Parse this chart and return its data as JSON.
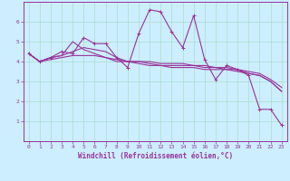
{
  "xlabel": "Windchill (Refroidissement éolien,°C)",
  "bg_color": "#cceeff",
  "grid_color": "#aaddcc",
  "line_color": "#993399",
  "xlim": [
    -0.5,
    23.5
  ],
  "ylim": [
    0,
    7
  ],
  "xticks": [
    0,
    1,
    2,
    3,
    4,
    5,
    6,
    7,
    8,
    9,
    10,
    11,
    12,
    13,
    14,
    15,
    16,
    17,
    18,
    19,
    20,
    21,
    22,
    23
  ],
  "yticks": [
    1,
    2,
    3,
    4,
    5,
    6
  ],
  "line1_x": [
    0,
    1,
    2,
    3,
    4,
    5,
    6,
    7,
    8,
    9,
    10,
    11,
    12,
    13,
    14,
    15,
    16,
    17,
    18,
    19,
    20,
    21,
    22,
    23
  ],
  "line1_y": [
    4.4,
    4.0,
    4.2,
    4.5,
    4.4,
    5.2,
    4.9,
    4.9,
    4.2,
    3.7,
    5.4,
    6.6,
    6.5,
    5.5,
    4.7,
    6.3,
    4.1,
    3.1,
    3.8,
    3.6,
    3.3,
    1.6,
    1.6,
    0.8
  ],
  "line2_x": [
    0,
    1,
    2,
    3,
    4,
    5,
    6,
    7,
    8,
    9,
    10,
    11,
    12,
    13,
    14,
    15,
    16,
    17,
    18,
    19,
    20,
    21,
    22,
    23
  ],
  "line2_y": [
    4.4,
    4.0,
    4.2,
    4.3,
    5.0,
    4.6,
    4.4,
    4.2,
    4.0,
    4.0,
    4.0,
    3.9,
    3.8,
    3.8,
    3.8,
    3.8,
    3.7,
    3.7,
    3.6,
    3.6,
    3.4,
    3.3,
    3.0,
    2.5
  ],
  "line3_x": [
    0,
    1,
    2,
    3,
    4,
    5,
    6,
    7,
    8,
    9,
    10,
    11,
    12,
    13,
    14,
    15,
    16,
    17,
    18,
    19,
    20,
    21,
    22,
    23
  ],
  "line3_y": [
    4.4,
    4.0,
    4.2,
    4.3,
    4.5,
    4.7,
    4.6,
    4.5,
    4.2,
    4.0,
    4.0,
    4.0,
    3.9,
    3.9,
    3.9,
    3.8,
    3.8,
    3.7,
    3.7,
    3.6,
    3.5,
    3.4,
    3.1,
    2.7
  ],
  "line4_x": [
    0,
    1,
    2,
    3,
    4,
    5,
    6,
    7,
    8,
    9,
    10,
    11,
    12,
    13,
    14,
    15,
    16,
    17,
    18,
    19,
    20,
    21,
    22,
    23
  ],
  "line4_y": [
    4.4,
    4.0,
    4.1,
    4.2,
    4.3,
    4.3,
    4.3,
    4.2,
    4.1,
    4.0,
    3.9,
    3.8,
    3.8,
    3.7,
    3.7,
    3.7,
    3.6,
    3.6,
    3.6,
    3.5,
    3.4,
    3.3,
    3.0,
    2.5
  ]
}
